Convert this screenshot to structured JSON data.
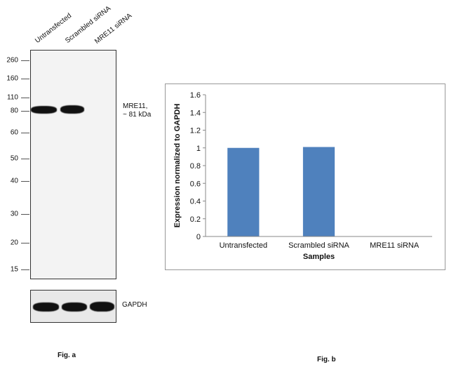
{
  "fig_a": {
    "caption": "Fig. a",
    "lanes": [
      "Untransfected",
      "Scrambled siRNA",
      "MRE11 siRNA"
    ],
    "mw_markers": [
      "260",
      "160",
      "110",
      "80",
      "60",
      "50",
      "40",
      "30",
      "20",
      "15"
    ],
    "target_label_line1": "MRE11,",
    "target_label_line2": "~ 81 kDa",
    "loading_label": "GAPDH"
  },
  "fig_b": {
    "caption": "Fig. b"
  },
  "chart_data": {
    "type": "bar",
    "categories": [
      "Untransfected",
      "Scrambled siRNA",
      "MRE11 siRNA"
    ],
    "values": [
      1.0,
      1.01,
      0.0
    ],
    "xlabel": "Samples",
    "ylabel": "Expression normalized to GAPDH",
    "ylim": [
      0,
      1.6
    ],
    "yticks": [
      "0",
      "0.2",
      "0.4",
      "0.6",
      "0.8",
      "1",
      "1.2",
      "1.4",
      "1.6"
    ],
    "bar_color": "#4f81bd",
    "grid": false,
    "legend": "none"
  }
}
